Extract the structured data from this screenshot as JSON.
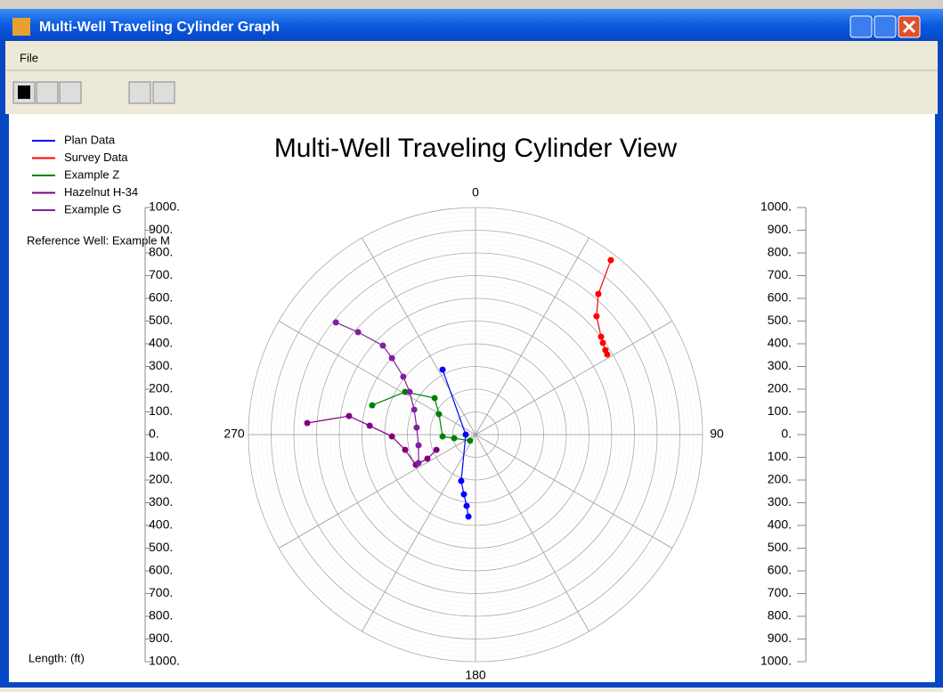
{
  "window": {
    "title": "Multi-Well Traveling Cylinder Graph"
  },
  "menu": [
    "File"
  ],
  "chart_data": {
    "type": "polar",
    "title": "Multi-Well Traveling Cylinder View",
    "reference": "Reference Well: Example M",
    "length_label": "Length: (ft)",
    "rlim": [
      0,
      1000
    ],
    "angle_ticks": [
      0,
      90,
      180,
      270
    ],
    "yticks": [
      {
        "value": 1000,
        "label": "1000."
      },
      {
        "value": 900,
        "label": "900."
      },
      {
        "value": 800,
        "label": "800."
      },
      {
        "value": 700,
        "label": "700."
      },
      {
        "value": 600,
        "label": "600."
      },
      {
        "value": 500,
        "label": "500."
      },
      {
        "value": 400,
        "label": "400."
      },
      {
        "value": 300,
        "label": "300."
      },
      {
        "value": 200,
        "label": "200."
      },
      {
        "value": 100,
        "label": "100."
      },
      {
        "value": 0,
        "label": "0."
      },
      {
        "value": -100,
        "label": "100."
      },
      {
        "value": -200,
        "label": "200."
      },
      {
        "value": -300,
        "label": "300."
      },
      {
        "value": -400,
        "label": "400."
      },
      {
        "value": -500,
        "label": "500."
      },
      {
        "value": -600,
        "label": "600."
      },
      {
        "value": -700,
        "label": "700."
      },
      {
        "value": -800,
        "label": "800."
      },
      {
        "value": -900,
        "label": "900."
      },
      {
        "value": -1000,
        "label": "1000."
      }
    ],
    "series": [
      {
        "name": "Plan Data",
        "color": "#0000ff",
        "x": [
          -145,
          -43,
          -63,
          -51,
          -39,
          -31
        ],
        "values": [
          286,
          0,
          -204,
          -263,
          -314,
          -361
        ]
      },
      {
        "name": "Survey Data",
        "color": "#ff0000",
        "x": [
          596,
          541,
          533,
          553,
          561,
          572,
          580
        ],
        "values": [
          768,
          619,
          521,
          431,
          404,
          372,
          353
        ]
      },
      {
        "name": "Example Z",
        "color": "#008000",
        "x": [
          -455,
          -310,
          -180,
          -161,
          -145,
          -94,
          -24
        ],
        "values": [
          129,
          188,
          161,
          90,
          -8,
          -16,
          -27
        ]
      },
      {
        "name": "Hazelnut H-34",
        "color": "#800080",
        "x": [
          -741,
          -557,
          -466,
          -368,
          -310,
          -263,
          -212,
          -172
        ],
        "values": [
          51,
          82,
          39,
          -8,
          -67,
          -133,
          -106,
          -67
        ]
      },
      {
        "name": "Example G",
        "color": "#8020a0",
        "x": [
          -615,
          -517,
          -408,
          -368,
          -318,
          -290,
          -270,
          -259,
          -251,
          -251
        ],
        "values": [
          494,
          451,
          392,
          337,
          255,
          188,
          110,
          31,
          -47,
          -125
        ]
      }
    ]
  }
}
